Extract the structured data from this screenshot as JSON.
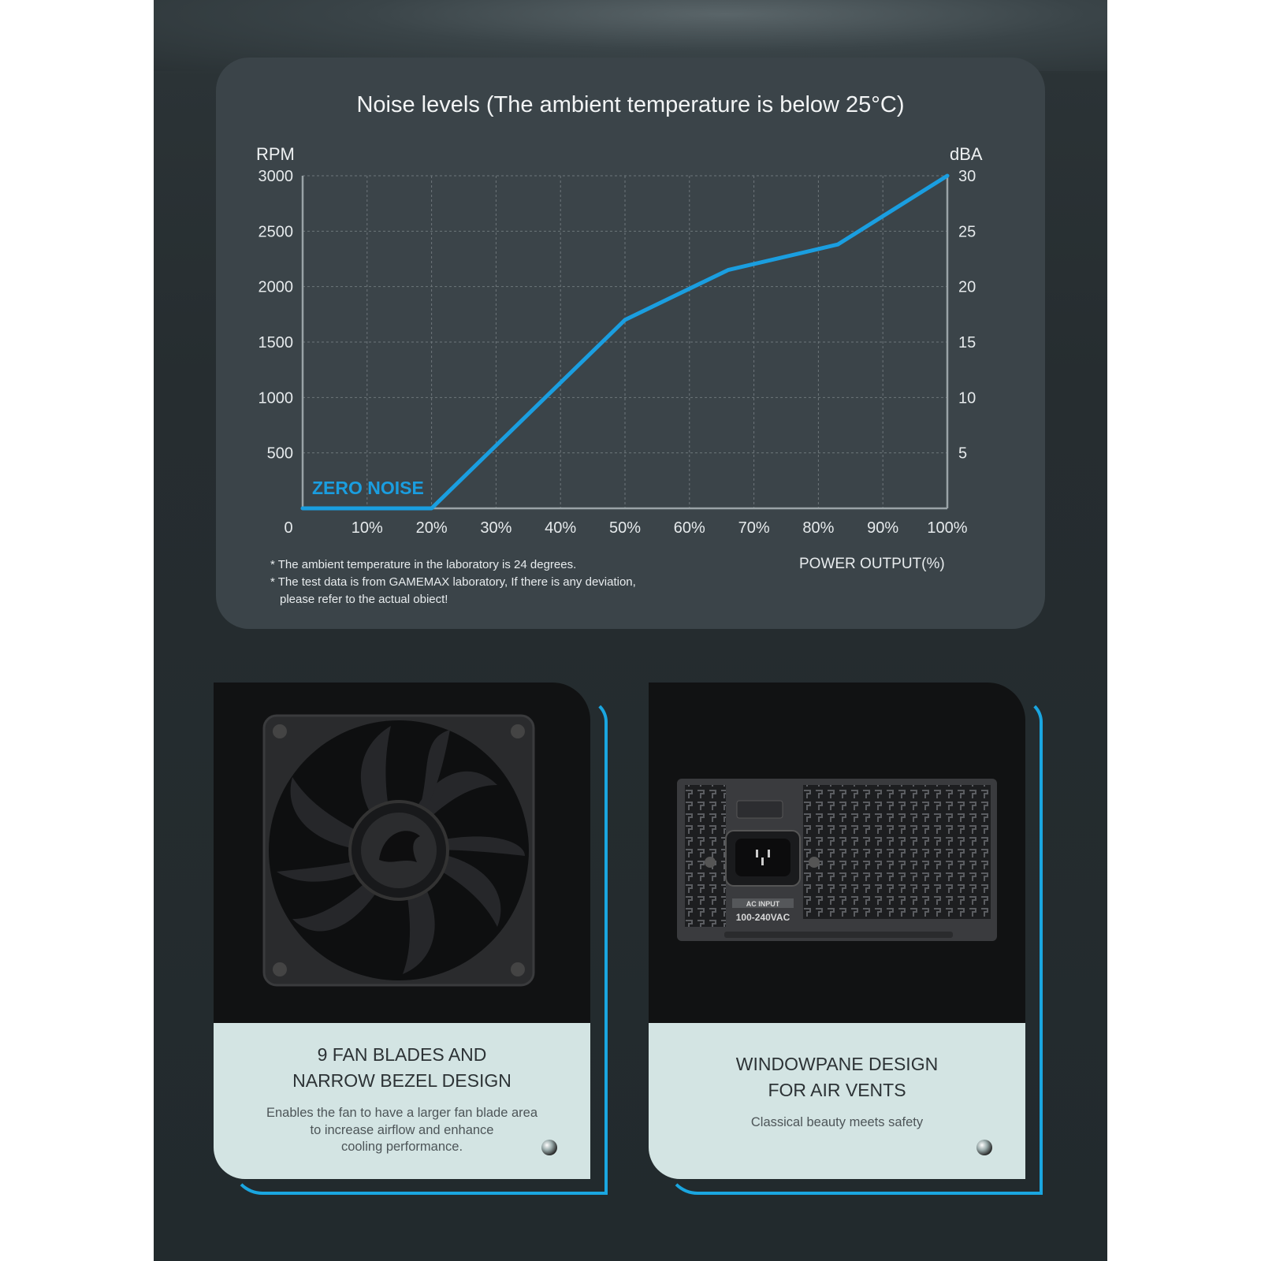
{
  "chart_data": {
    "type": "line",
    "title": "Noise levels (The ambient temperature is below 25°C)",
    "left_axis_label": "RPM",
    "right_axis_label": "dBA",
    "xlabel": "POWER OUTPUT(%)",
    "x_ticks": [
      "0",
      "10%",
      "20%",
      "30%",
      "40%",
      "50%",
      "60%",
      "70%",
      "80%",
      "90%",
      "100%"
    ],
    "y_left_ticks": [
      "3000",
      "2500",
      "2000",
      "1500",
      "1000",
      "500"
    ],
    "y_right_ticks": [
      "30",
      "25",
      "20",
      "15",
      "10",
      "5"
    ],
    "ylim_left": [
      0,
      3000
    ],
    "ylim_right": [
      0,
      30
    ],
    "xlim": [
      0,
      100
    ],
    "grid": true,
    "series": [
      {
        "x": [
          0,
          20,
          50,
          66,
          83,
          100
        ],
        "y": [
          0,
          0,
          1700,
          2150,
          2380,
          3000
        ]
      }
    ],
    "line_color": "#1a9ee0",
    "annotation": "ZERO NOISE",
    "notes": [
      "* The ambient temperature in the laboratory is 24 degrees.",
      "* The test data is from GAMEMAX laboratory, If there is any deviation,",
      "please refer to the actual obiect!"
    ]
  },
  "cards": [
    {
      "title": "9 FAN BLADES AND\nNARROW BEZEL DESIGN",
      "desc": "Enables the fan to have a larger fan blade area\nto increase airflow and enhance\ncooling performance."
    },
    {
      "title": "WINDOWPANE DESIGN\nFOR AIR VENTS",
      "desc": "Classical beauty meets safety",
      "psu_label_top": "AC INPUT",
      "psu_label_bottom": "100-240VAC"
    }
  ],
  "colors": {
    "accent": "#1aa6e0",
    "panel": "#3b4449",
    "caption_bg": "#d3e4e3"
  }
}
